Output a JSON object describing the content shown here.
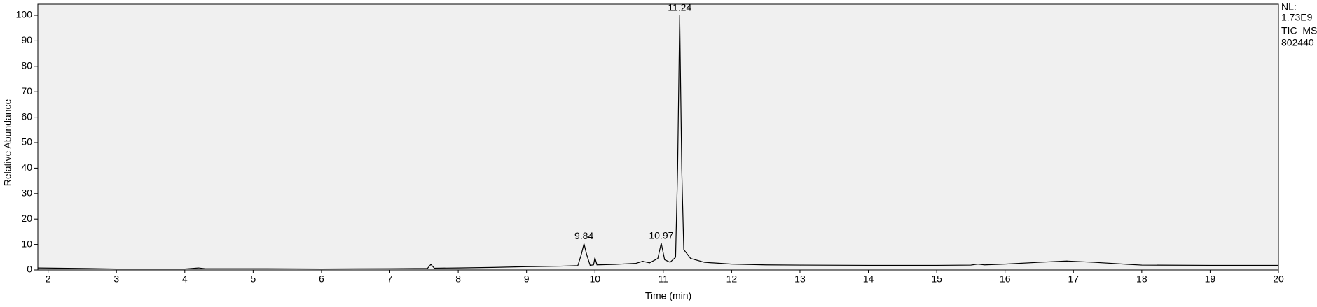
{
  "chart_data": {
    "type": "line",
    "x_label": "Time (min)",
    "y_label": "Relative Abundance",
    "info": [
      "NL:",
      "1.73E9",
      "TIC  MS",
      "802440"
    ],
    "xlim": [
      1.85,
      20
    ],
    "ylim": [
      0,
      104.4
    ],
    "xticks": [
      2,
      3,
      4,
      5,
      6,
      7,
      8,
      9,
      10,
      11,
      12,
      13,
      14,
      15,
      16,
      17,
      18,
      19,
      20
    ],
    "yticks": [
      0,
      10,
      20,
      30,
      40,
      50,
      60,
      70,
      80,
      90,
      100
    ],
    "series": [
      {
        "name": "TIC",
        "color": "#000000",
        "x": [
          1.85,
          2.5,
          3,
          4,
          4.2,
          4.3,
          5,
          6,
          7,
          7.55,
          7.6,
          7.65,
          8,
          8.5,
          9,
          9.5,
          9.75,
          9.8,
          9.84,
          9.88,
          9.93,
          9.98,
          10.0,
          10.03,
          10.3,
          10.6,
          10.7,
          10.8,
          10.92,
          10.97,
          11.02,
          11.1,
          11.18,
          11.21,
          11.24,
          11.27,
          11.3,
          11.4,
          11.6,
          12,
          12.5,
          13,
          14,
          15,
          15.5,
          15.6,
          15.7,
          16,
          16.5,
          16.9,
          17.3,
          17.8,
          18,
          19,
          20
        ],
        "values": [
          0.8,
          0.6,
          0.4,
          0.4,
          0.8,
          0.5,
          0.5,
          0.4,
          0.5,
          0.6,
          2.2,
          0.7,
          0.8,
          1.0,
          1.3,
          1.5,
          1.7,
          6,
          10.3,
          6,
          1.8,
          2.0,
          4.8,
          2.0,
          2.2,
          2.6,
          3.4,
          2.8,
          4.5,
          10.5,
          4,
          3,
          5,
          40,
          100,
          40,
          8,
          4.5,
          3.0,
          2.3,
          2.0,
          1.9,
          1.8,
          1.8,
          1.9,
          2.3,
          2.0,
          2.3,
          3.0,
          3.5,
          3.0,
          2.2,
          1.9,
          1.8,
          1.8
        ]
      }
    ],
    "peak_labels": [
      {
        "x": 9.84,
        "y": 10.3
      },
      {
        "x": 10.97,
        "y": 10.5
      },
      {
        "x": 11.24,
        "y": 100
      }
    ]
  }
}
